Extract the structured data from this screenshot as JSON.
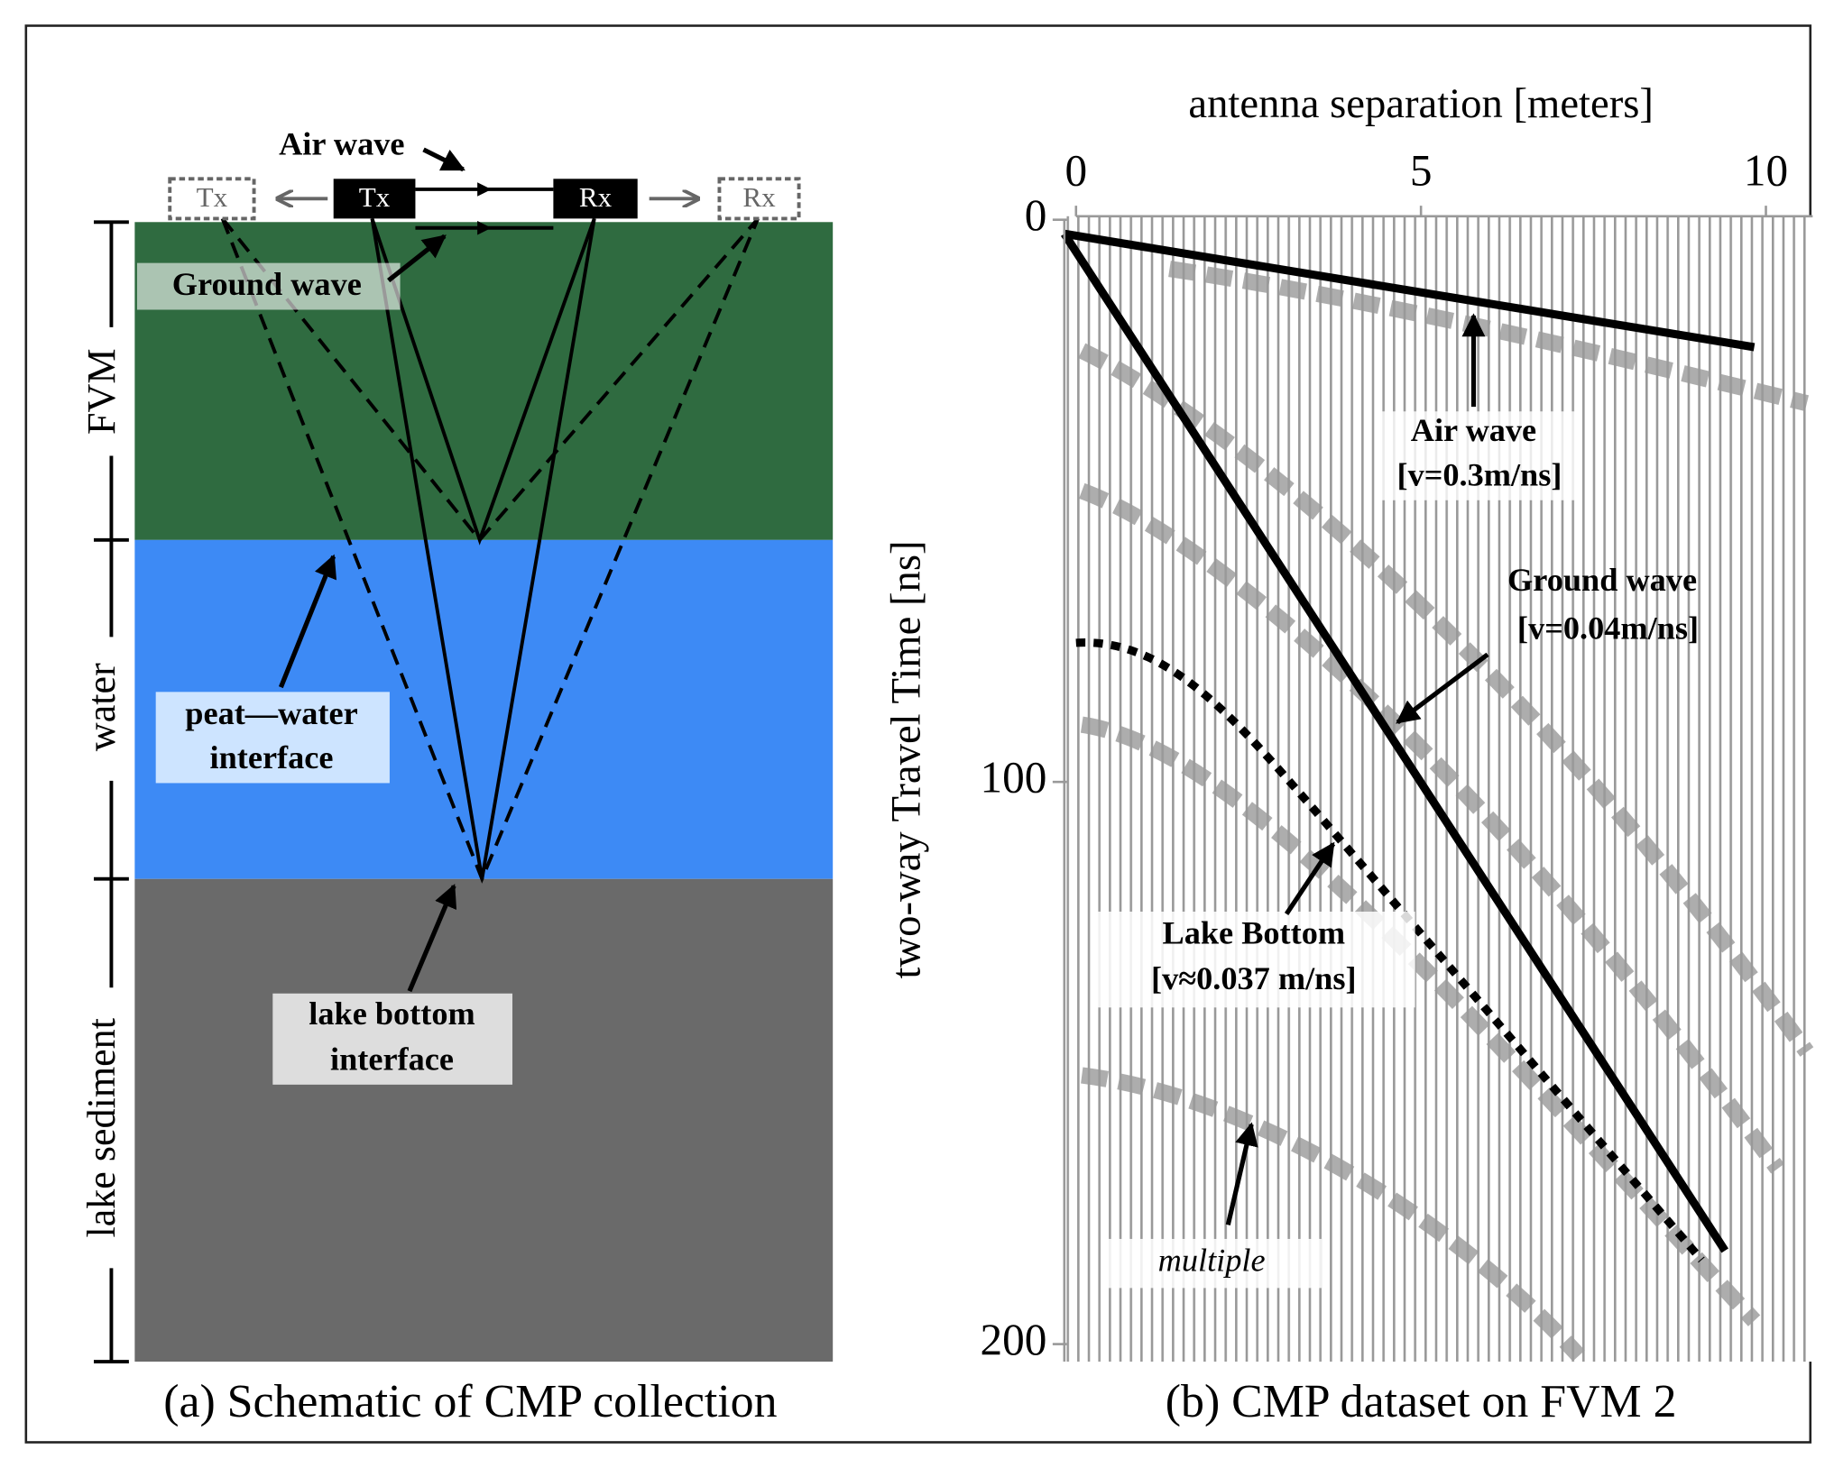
{
  "panel_a": {
    "air_wave": "Air wave",
    "tx_left": "Tx",
    "tx": "Tx",
    "rx": "Rx",
    "rx_right": "Rx",
    "ground_wave": "Ground wave",
    "layers": [
      "FVM",
      "water",
      "lake sediment"
    ],
    "peat_water": [
      "peat—water",
      "interface"
    ],
    "lake_bottom": [
      "lake bottom",
      "interface"
    ],
    "caption": "(a) Schematic of CMP collection"
  },
  "panel_b": {
    "x_label": "antenna separation [meters]",
    "y_label": "two-way Travel Time [ns]",
    "xticks": [
      0,
      5,
      10
    ],
    "yticks": [
      0,
      100,
      200
    ],
    "air_wave": [
      "Air wave",
      "[v=0.3m/ns]"
    ],
    "ground_wave": [
      "Ground wave",
      "[v=0.04m/ns]"
    ],
    "lake_bottom": [
      "Lake Bottom",
      "[v≈0.037 m/ns]"
    ],
    "multiple": "multiple",
    "caption": "(b) CMP dataset on FVM 2"
  }
}
